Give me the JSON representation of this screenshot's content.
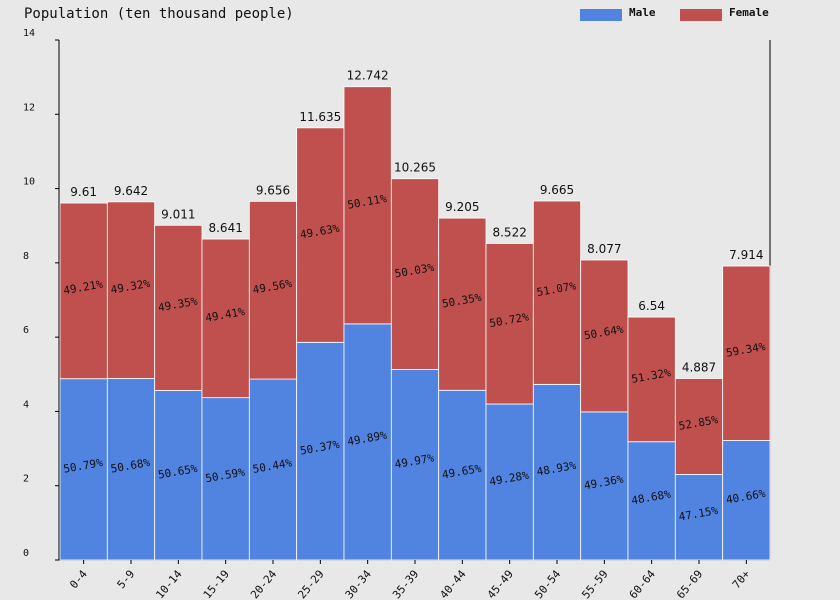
{
  "chart_data": {
    "type": "stacked-bar",
    "title": "Population (ten thousand people)",
    "categories": [
      "0-4",
      "5-9",
      "10-14",
      "15-19",
      "20-24",
      "25-29",
      "30-34",
      "35-39",
      "40-44",
      "45-49",
      "50-54",
      "55-59",
      "60-64",
      "65-69",
      "70+"
    ],
    "series": [
      {
        "name": "Male",
        "color": "#5183e0",
        "values": [
          4.881,
          4.887,
          4.564,
          4.371,
          4.871,
          5.861,
          6.357,
          5.129,
          4.57,
          4.2,
          4.729,
          3.987,
          3.184,
          2.304,
          3.218
        ],
        "percent_labels": [
          "50.79%",
          "50.68%",
          "50.65%",
          "50.59%",
          "50.44%",
          "50.37%",
          "49.89%",
          "49.97%",
          "49.65%",
          "49.28%",
          "48.93%",
          "49.36%",
          "48.68%",
          "47.15%",
          "40.66%"
        ]
      },
      {
        "name": "Female",
        "color": "#c0504d",
        "values": [
          4.729,
          4.755,
          4.447,
          4.27,
          4.785,
          5.774,
          6.385,
          5.136,
          4.635,
          4.322,
          4.936,
          4.09,
          3.356,
          2.583,
          4.696
        ],
        "percent_labels": [
          "49.21%",
          "49.32%",
          "49.35%",
          "49.41%",
          "49.56%",
          "49.63%",
          "50.11%",
          "50.03%",
          "50.35%",
          "50.72%",
          "51.07%",
          "50.64%",
          "51.32%",
          "52.85%",
          "59.34%"
        ]
      }
    ],
    "totals": [
      9.61,
      9.642,
      9.011,
      8.641,
      9.656,
      11.635,
      12.742,
      10.265,
      9.205,
      8.522,
      9.665,
      8.077,
      6.54,
      4.887,
      7.914
    ],
    "ylim": [
      0,
      14
    ],
    "yticks": [
      0,
      2,
      4,
      6,
      8,
      10,
      12,
      14
    ]
  }
}
